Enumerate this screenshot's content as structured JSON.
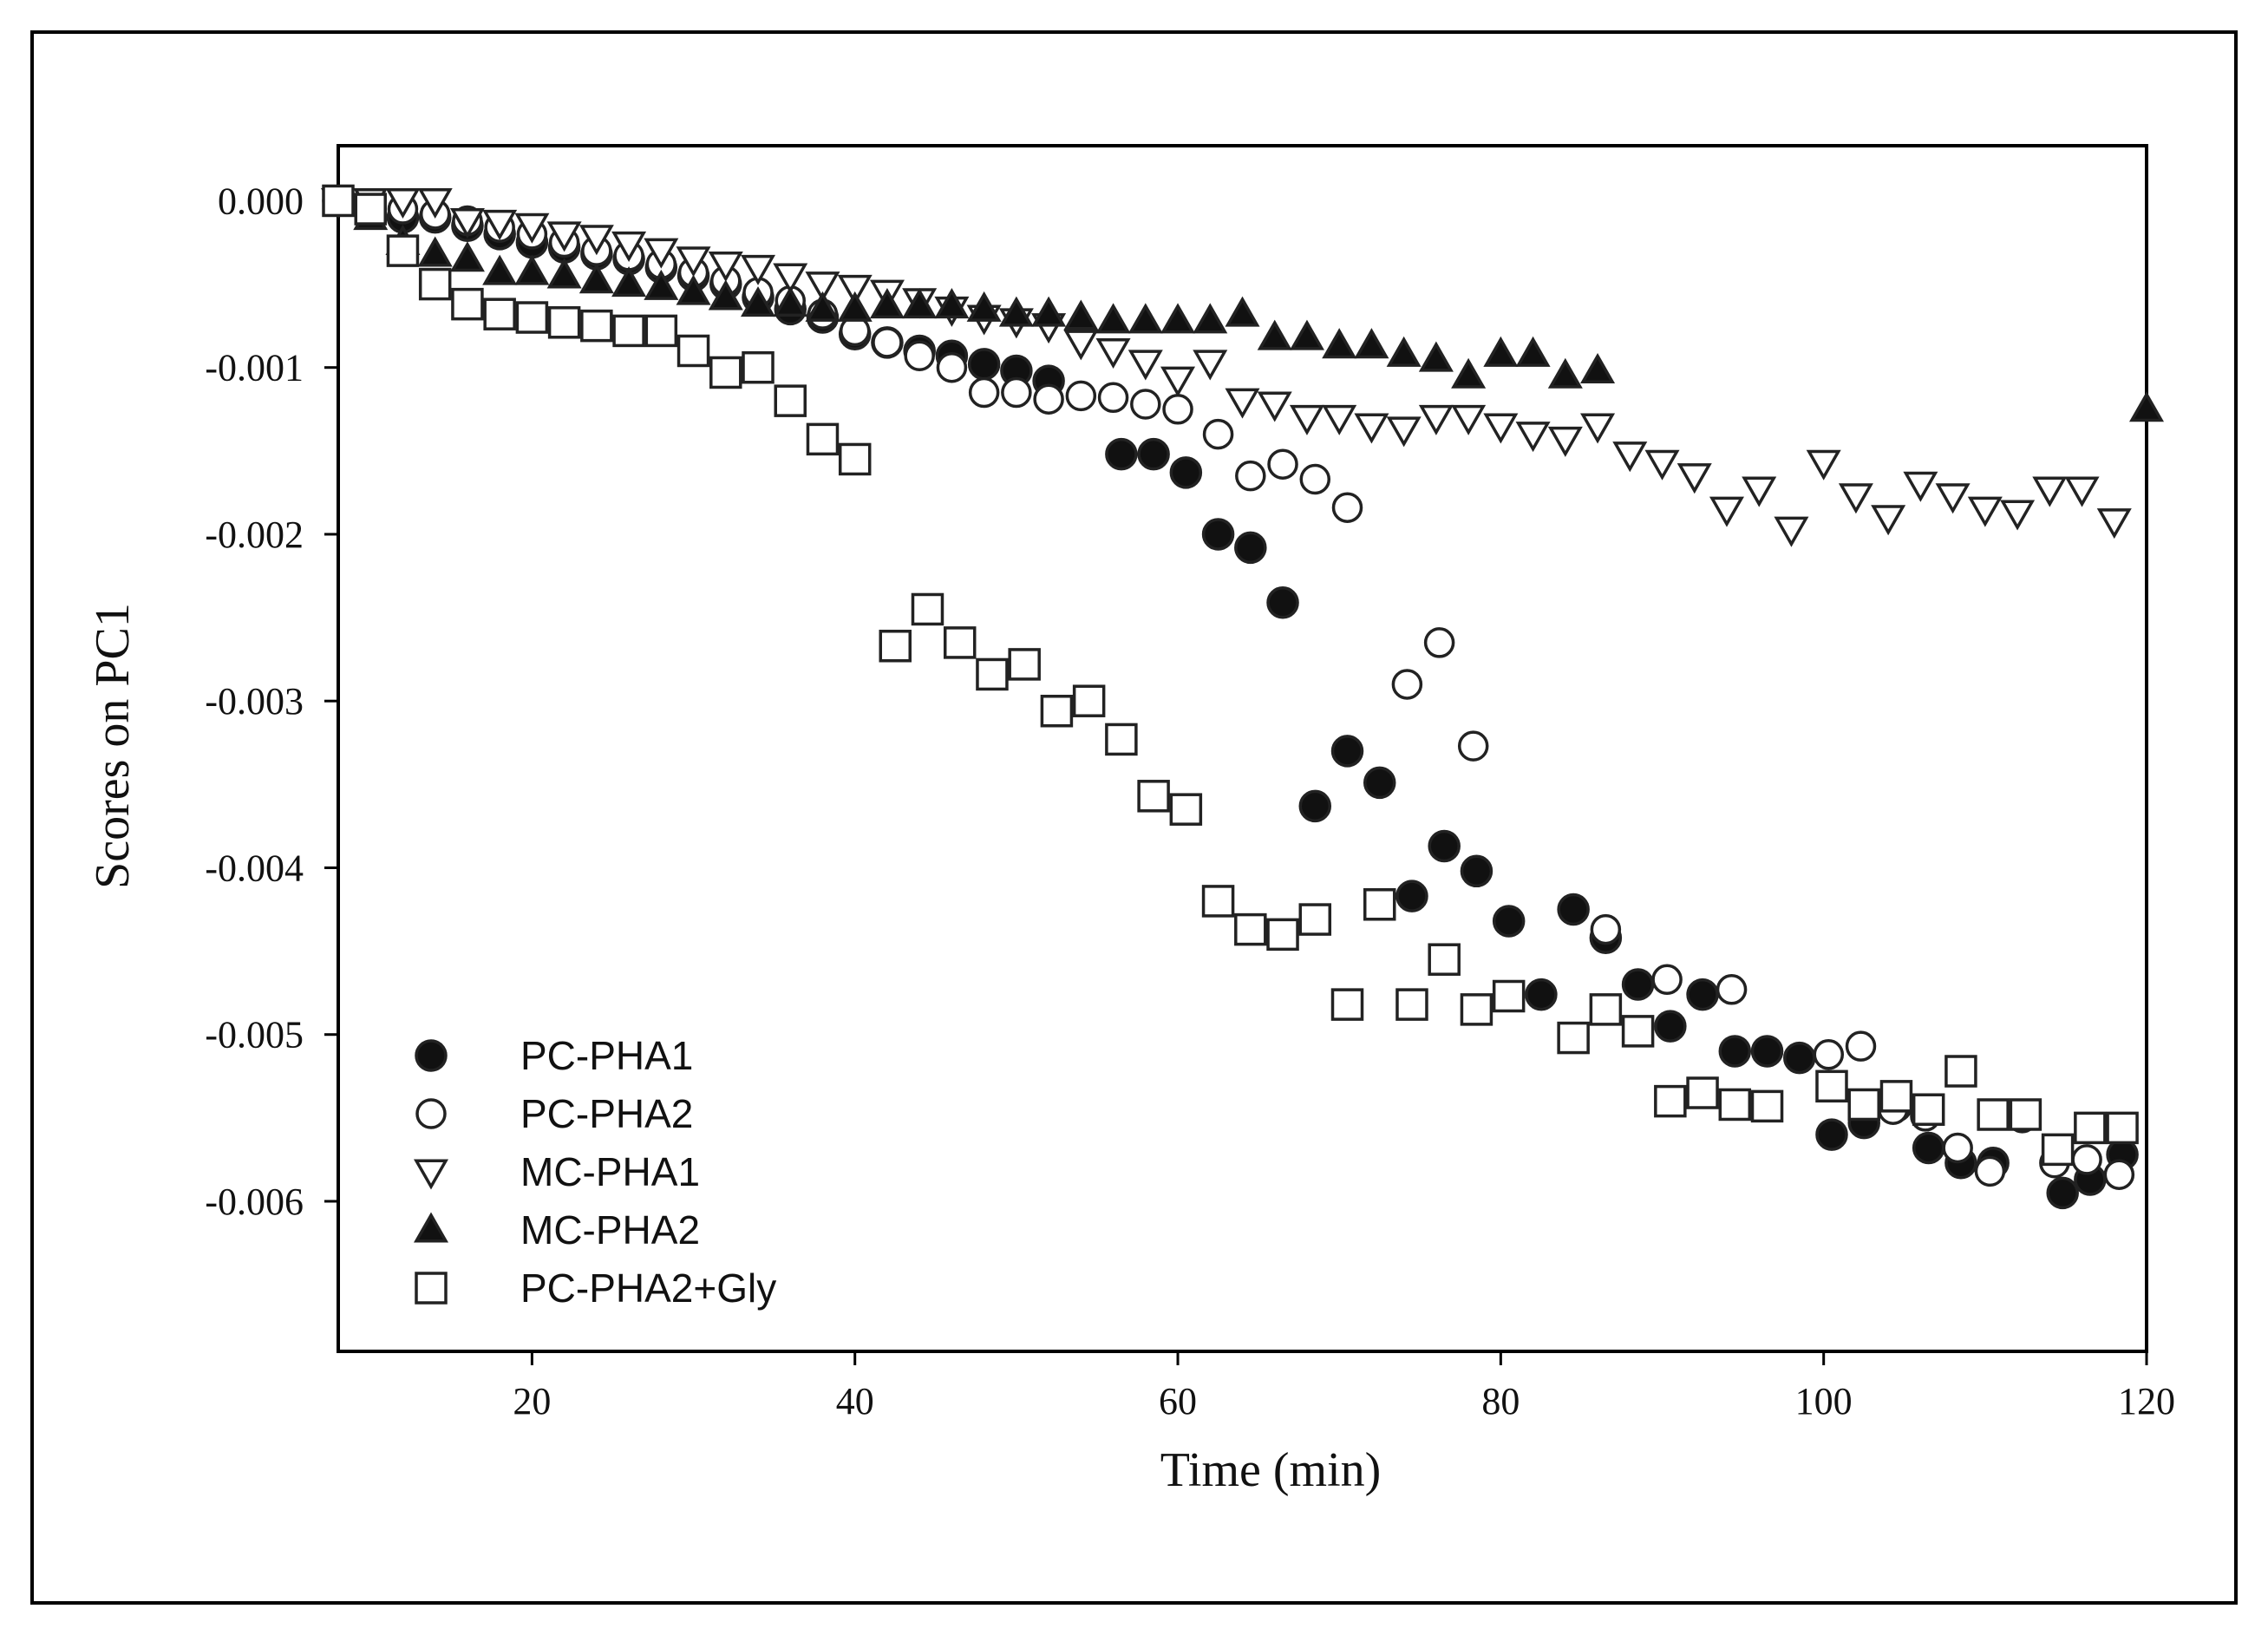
{
  "chart_data": {
    "type": "scatter",
    "title": "",
    "xlabel": "Time (min)",
    "ylabel": "Scores on PC1",
    "xlim": [
      8,
      120
    ],
    "ylim": [
      -0.0069,
      0.00033
    ],
    "xticks": [
      20,
      40,
      60,
      80,
      100,
      120
    ],
    "xtick_labels": [
      "20",
      "40",
      "60",
      "80",
      "100",
      "120"
    ],
    "yticks": [
      0,
      -0.001,
      -0.002,
      -0.003,
      -0.004,
      -0.005,
      -0.006
    ],
    "ytick_labels": [
      "0.000",
      "-0.001",
      "-0.002",
      "-0.003",
      "-0.004",
      "-0.005",
      "-0.006"
    ],
    "grid": false,
    "legend_position": "bottom-left",
    "series": [
      {
        "name": "PC-PHA1",
        "marker": "filled-circle",
        "points": [
          [
            8,
            0
          ],
          [
            10,
            -5e-05
          ],
          [
            12,
            -0.0001
          ],
          [
            14,
            -0.0001
          ],
          [
            16,
            -0.00015
          ],
          [
            18,
            -0.0002
          ],
          [
            20,
            -0.00025
          ],
          [
            22,
            -0.00028
          ],
          [
            24,
            -0.00032
          ],
          [
            26,
            -0.00035
          ],
          [
            28,
            -0.0004
          ],
          [
            30,
            -0.00045
          ],
          [
            32,
            -0.0005
          ],
          [
            34,
            -0.00058
          ],
          [
            36,
            -0.00065
          ],
          [
            38,
            -0.0007
          ],
          [
            40,
            -0.0008
          ],
          [
            42,
            -0.00085
          ],
          [
            44,
            -0.0009
          ],
          [
            46,
            -0.00093
          ],
          [
            48,
            -0.00098
          ],
          [
            50,
            -0.00102
          ],
          [
            52,
            -0.00108
          ],
          [
            56.5,
            -0.00152
          ],
          [
            58.5,
            -0.00152
          ],
          [
            60.5,
            -0.00163
          ],
          [
            62.5,
            -0.002
          ],
          [
            64.5,
            -0.00208
          ],
          [
            66.5,
            -0.00241
          ],
          [
            68.5,
            -0.00363
          ],
          [
            70.5,
            -0.0033
          ],
          [
            72.5,
            -0.00349
          ],
          [
            74.5,
            -0.00417
          ],
          [
            76.5,
            -0.00387
          ],
          [
            78.5,
            -0.00402
          ],
          [
            80.5,
            -0.00432
          ],
          [
            82.5,
            -0.00476
          ],
          [
            84.5,
            -0.00425
          ],
          [
            86.5,
            -0.00442
          ],
          [
            88.5,
            -0.0047
          ],
          [
            90.5,
            -0.00495
          ],
          [
            92.5,
            -0.00476
          ],
          [
            94.5,
            -0.0051
          ],
          [
            96.5,
            -0.0051
          ],
          [
            98.5,
            -0.00514
          ],
          [
            100.5,
            -0.0056
          ],
          [
            102.5,
            -0.00553
          ],
          [
            104.5,
            -0.00543
          ],
          [
            106.5,
            -0.00568
          ],
          [
            108.5,
            -0.00577
          ],
          [
            110.5,
            -0.00577
          ],
          [
            114.8,
            -0.00595
          ],
          [
            116.5,
            -0.00587
          ],
          [
            118.5,
            -0.00572
          ]
        ]
      },
      {
        "name": "PC-PHA2",
        "marker": "open-circle",
        "points": [
          [
            8,
            0
          ],
          [
            10,
            -2e-05
          ],
          [
            12,
            -5e-05
          ],
          [
            14,
            -8e-05
          ],
          [
            16,
            -0.00012
          ],
          [
            18,
            -0.00016
          ],
          [
            20,
            -0.0002
          ],
          [
            22,
            -0.00025
          ],
          [
            24,
            -0.0003
          ],
          [
            26,
            -0.00033
          ],
          [
            28,
            -0.00038
          ],
          [
            30,
            -0.00043
          ],
          [
            32,
            -0.00048
          ],
          [
            34,
            -0.00055
          ],
          [
            36,
            -0.0006
          ],
          [
            38,
            -0.00068
          ],
          [
            40,
            -0.00078
          ],
          [
            42,
            -0.00085
          ],
          [
            44,
            -0.00093
          ],
          [
            46,
            -0.001
          ],
          [
            48,
            -0.00115
          ],
          [
            50,
            -0.00115
          ],
          [
            52,
            -0.00119
          ],
          [
            54,
            -0.00117
          ],
          [
            56,
            -0.00118
          ],
          [
            58,
            -0.00122
          ],
          [
            60,
            -0.00125
          ],
          [
            62.5,
            -0.0014
          ],
          [
            64.5,
            -0.00165
          ],
          [
            66.5,
            -0.00158
          ],
          [
            68.5,
            -0.00167
          ],
          [
            70.5,
            -0.00184
          ],
          [
            74.2,
            -0.0029
          ],
          [
            76.2,
            -0.00265
          ],
          [
            78.3,
            -0.00327
          ],
          [
            86.5,
            -0.00437
          ],
          [
            90.3,
            -0.00467
          ],
          [
            94.3,
            -0.00473
          ],
          [
            100.3,
            -0.00512
          ],
          [
            102.3,
            -0.00507
          ],
          [
            104.3,
            -0.00545
          ],
          [
            106.3,
            -0.00549
          ],
          [
            108.3,
            -0.00568
          ],
          [
            110.3,
            -0.00582
          ],
          [
            112.3,
            -0.0055
          ],
          [
            114.3,
            -0.00577
          ],
          [
            116.3,
            -0.00575
          ],
          [
            118.3,
            -0.00584
          ]
        ]
      },
      {
        "name": "MC-PHA1",
        "marker": "open-triangle-down",
        "points": [
          [
            8,
            0
          ],
          [
            10,
            0
          ],
          [
            12,
            0
          ],
          [
            14,
            0
          ],
          [
            16,
            -0.00012
          ],
          [
            18,
            -0.00013
          ],
          [
            20,
            -0.00015
          ],
          [
            22,
            -0.0002
          ],
          [
            24,
            -0.00022
          ],
          [
            26,
            -0.00026
          ],
          [
            28,
            -0.0003
          ],
          [
            30,
            -0.00035
          ],
          [
            32,
            -0.00038
          ],
          [
            34,
            -0.0004
          ],
          [
            36,
            -0.00045
          ],
          [
            38,
            -0.0005
          ],
          [
            40,
            -0.00052
          ],
          [
            42,
            -0.00055
          ],
          [
            44,
            -0.0006
          ],
          [
            46,
            -0.00065
          ],
          [
            48,
            -0.0007
          ],
          [
            50,
            -0.00072
          ],
          [
            52,
            -0.00075
          ],
          [
            54,
            -0.00085
          ],
          [
            56,
            -0.0009
          ],
          [
            58,
            -0.00097
          ],
          [
            60,
            -0.00107
          ],
          [
            62,
            -0.00097
          ],
          [
            64,
            -0.0012
          ],
          [
            66,
            -0.00122
          ],
          [
            68,
            -0.0013
          ],
          [
            70,
            -0.0013
          ],
          [
            72,
            -0.00135
          ],
          [
            74,
            -0.00137
          ],
          [
            76,
            -0.0013
          ],
          [
            78,
            -0.0013
          ],
          [
            80,
            -0.00135
          ],
          [
            82,
            -0.0014
          ],
          [
            84,
            -0.00143
          ],
          [
            86,
            -0.00135
          ],
          [
            88,
            -0.00152
          ],
          [
            90,
            -0.00157
          ],
          [
            92,
            -0.00165
          ],
          [
            94,
            -0.00185
          ],
          [
            96,
            -0.00173
          ],
          [
            98,
            -0.00197
          ],
          [
            100,
            -0.00157
          ],
          [
            102,
            -0.00177
          ],
          [
            104,
            -0.0019
          ],
          [
            106,
            -0.0017
          ],
          [
            108,
            -0.00177
          ],
          [
            110,
            -0.00185
          ],
          [
            112,
            -0.00187
          ],
          [
            114,
            -0.00173
          ],
          [
            116,
            -0.00173
          ],
          [
            118,
            -0.00192
          ]
        ]
      },
      {
        "name": "MC-PHA2",
        "marker": "filled-triangle-up",
        "points": [
          [
            10,
            -0.0001
          ],
          [
            12,
            -0.00025
          ],
          [
            14,
            -0.00032
          ],
          [
            16,
            -0.00035
          ],
          [
            18,
            -0.00043
          ],
          [
            20,
            -0.00043
          ],
          [
            22,
            -0.00045
          ],
          [
            24,
            -0.00048
          ],
          [
            26,
            -0.0005
          ],
          [
            28,
            -0.00052
          ],
          [
            30,
            -0.00055
          ],
          [
            32,
            -0.00058
          ],
          [
            34,
            -0.00062
          ],
          [
            36,
            -0.00062
          ],
          [
            38,
            -0.00065
          ],
          [
            40,
            -0.00065
          ],
          [
            42,
            -0.00063
          ],
          [
            44,
            -0.00063
          ],
          [
            46,
            -0.00063
          ],
          [
            48,
            -0.00065
          ],
          [
            50,
            -0.00068
          ],
          [
            52,
            -0.00068
          ],
          [
            54,
            -0.0007
          ],
          [
            56,
            -0.00072
          ],
          [
            58,
            -0.00072
          ],
          [
            60,
            -0.00072
          ],
          [
            62,
            -0.00072
          ],
          [
            64,
            -0.00068
          ],
          [
            66,
            -0.00082
          ],
          [
            68,
            -0.00082
          ],
          [
            70,
            -0.00087
          ],
          [
            72,
            -0.00087
          ],
          [
            74,
            -0.00092
          ],
          [
            76,
            -0.00095
          ],
          [
            78,
            -0.00105
          ],
          [
            80,
            -0.00092
          ],
          [
            82,
            -0.00092
          ],
          [
            84,
            -0.00105
          ],
          [
            86,
            -0.00102
          ],
          [
            120,
            -0.00125
          ]
        ]
      },
      {
        "name": "PC-PHA2+Gly",
        "marker": "open-square",
        "points": [
          [
            8,
            0
          ],
          [
            10,
            -5e-05
          ],
          [
            12,
            -0.0003
          ],
          [
            14,
            -0.0005
          ],
          [
            16,
            -0.00062
          ],
          [
            18,
            -0.00068
          ],
          [
            20,
            -0.0007
          ],
          [
            22,
            -0.00073
          ],
          [
            24,
            -0.00075
          ],
          [
            26,
            -0.00078
          ],
          [
            28,
            -0.00078
          ],
          [
            30,
            -0.0009
          ],
          [
            32,
            -0.00103
          ],
          [
            34,
            -0.001
          ],
          [
            36,
            -0.0012
          ],
          [
            38,
            -0.00143
          ],
          [
            40,
            -0.00155
          ],
          [
            42.5,
            -0.00267
          ],
          [
            44.5,
            -0.00245
          ],
          [
            46.5,
            -0.00265
          ],
          [
            48.5,
            -0.00284
          ],
          [
            50.5,
            -0.00278
          ],
          [
            52.5,
            -0.00306
          ],
          [
            54.5,
            -0.003
          ],
          [
            56.5,
            -0.00323
          ],
          [
            58.5,
            -0.00357
          ],
          [
            60.5,
            -0.00365
          ],
          [
            62.5,
            -0.0042
          ],
          [
            64.5,
            -0.00437
          ],
          [
            66.5,
            -0.0044
          ],
          [
            68.5,
            -0.00431
          ],
          [
            70.5,
            -0.00482
          ],
          [
            72.5,
            -0.00422
          ],
          [
            74.5,
            -0.00482
          ],
          [
            76.5,
            -0.00455
          ],
          [
            78.5,
            -0.00485
          ],
          [
            80.5,
            -0.00477
          ],
          [
            84.5,
            -0.00502
          ],
          [
            86.5,
            -0.00485
          ],
          [
            88.5,
            -0.00498
          ],
          [
            90.5,
            -0.0054
          ],
          [
            92.5,
            -0.00535
          ],
          [
            94.5,
            -0.00542
          ],
          [
            96.5,
            -0.00543
          ],
          [
            100.5,
            -0.00531
          ],
          [
            102.5,
            -0.00542
          ],
          [
            104.5,
            -0.00537
          ],
          [
            106.5,
            -0.00545
          ],
          [
            108.5,
            -0.00522
          ],
          [
            110.5,
            -0.00548
          ],
          [
            112.5,
            -0.00548
          ],
          [
            114.5,
            -0.00569
          ],
          [
            116.5,
            -0.00556
          ],
          [
            118.5,
            -0.00556
          ]
        ]
      }
    ]
  }
}
